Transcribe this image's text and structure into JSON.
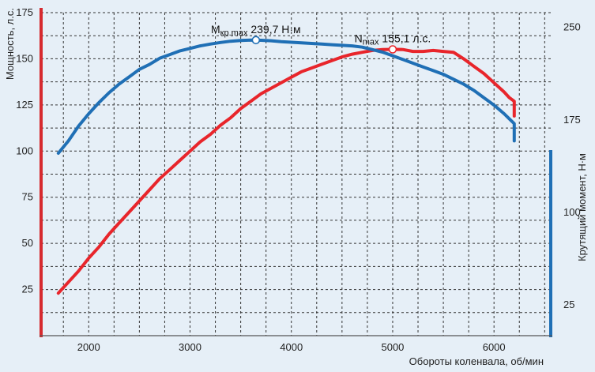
{
  "chart_data": {
    "type": "line",
    "grid": true,
    "xlabel": "Обороты коленвала, об/мин",
    "ylabel_left": "Мощность, л.с.",
    "ylabel_right": "Крутящий момент, Н·м",
    "xlim": [
      1530,
      6560
    ],
    "ylim_left": [
      0,
      175
    ],
    "ylim_right": [
      0,
      262
    ],
    "x_ticks": [
      2000,
      3000,
      4000,
      5000,
      6000
    ],
    "y_ticks_left": [
      25,
      50,
      75,
      100,
      125,
      150,
      175
    ],
    "y_ticks_right": [
      25,
      100,
      175,
      250
    ],
    "colors": {
      "power": "#e8252b",
      "torque": "#1f6fb5",
      "axis_left": "#d62a2f",
      "axis_right": "#1f6fb5"
    },
    "series": [
      {
        "axis": "left",
        "x": [
          1700,
          1800,
          1900,
          2000,
          2100,
          2200,
          2300,
          2400,
          2500,
          2600,
          2700,
          2800,
          2900,
          3000,
          3100,
          3200,
          3300,
          3400,
          3500,
          3600,
          3700,
          3800,
          3900,
          4000,
          4100,
          4200,
          4300,
          4400,
          4500,
          4600,
          4700,
          4800,
          4900,
          5000,
          5100,
          5200,
          5300,
          5400,
          5500,
          5600,
          5700,
          5800,
          5900,
          6000,
          6100,
          6150,
          6200,
          6200
        ],
        "y": [
          23,
          29,
          35,
          42,
          48,
          55,
          61,
          67,
          73,
          79,
          85,
          90,
          95,
          100,
          105,
          109,
          114,
          118,
          123,
          127,
          131,
          134,
          137,
          140,
          143,
          145,
          147,
          149,
          151,
          152.5,
          153.5,
          154.5,
          155,
          155.1,
          155,
          154,
          154,
          154.5,
          154,
          153.5,
          150,
          146,
          142,
          137,
          132,
          129,
          127,
          119
        ]
      },
      {
        "axis": "right",
        "x": [
          1700,
          1800,
          1900,
          2000,
          2100,
          2200,
          2300,
          2400,
          2500,
          2600,
          2700,
          2800,
          2900,
          3000,
          3100,
          3200,
          3300,
          3400,
          3500,
          3600,
          3700,
          3800,
          3900,
          4000,
          4100,
          4200,
          4300,
          4400,
          4500,
          4600,
          4700,
          4800,
          4900,
          5000,
          5100,
          5200,
          5300,
          5400,
          5500,
          5600,
          5700,
          5800,
          5900,
          6000,
          6100,
          6150,
          6200,
          6200
        ],
        "y": [
          148,
          158,
          170,
          180,
          189,
          197,
          204,
          210,
          216,
          220,
          225,
          228,
          231,
          233,
          235,
          236.5,
          237.8,
          238.8,
          239.4,
          239.7,
          239.6,
          239.2,
          238.5,
          238,
          237.5,
          237,
          236.5,
          236,
          235.5,
          235,
          234,
          232,
          230,
          227,
          224,
          221,
          218,
          215,
          212,
          208,
          204,
          199,
          193,
          187,
          180,
          176,
          172,
          158
        ]
      }
    ],
    "annotations": [
      {
        "series": 0,
        "x": 5000,
        "y": 155.1,
        "label_main": "N",
        "label_sub": "max",
        "label_value": "155,1 л.с."
      },
      {
        "series": 1,
        "x": 3650,
        "y": 239.7,
        "label_main": "M",
        "label_sub": "кр.max",
        "label_value": "239,7 Н·м"
      }
    ]
  }
}
